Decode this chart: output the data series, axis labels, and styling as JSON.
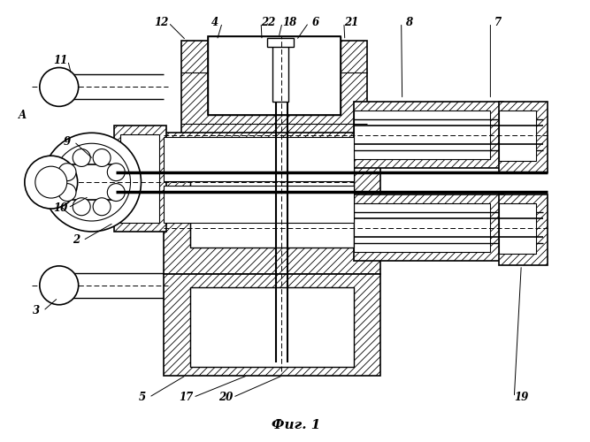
{
  "title": "Фиг. 1",
  "bg": "#ffffff",
  "lc": "#000000",
  "fig_width": 6.67,
  "fig_height": 5.0,
  "dpi": 100
}
